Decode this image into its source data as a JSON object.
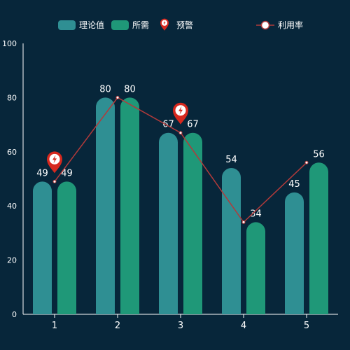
{
  "chart_data": {
    "type": "bar",
    "categories": [
      "1",
      "2",
      "3",
      "4",
      "5"
    ],
    "ylim": [
      0,
      100
    ],
    "yticks": [
      0,
      20,
      40,
      60,
      80,
      100
    ],
    "series": [
      {
        "name": "理论值",
        "kind": "bar",
        "values": [
          49,
          80,
          67,
          54,
          45
        ],
        "color": "#2f8f93"
      },
      {
        "name": "所需",
        "kind": "bar",
        "values": [
          49,
          80,
          67,
          34,
          56
        ],
        "color": "#1f9878"
      },
      {
        "name": "利用率",
        "kind": "line",
        "values": [
          49,
          80,
          67,
          34,
          56
        ],
        "color": "#b23a3a"
      }
    ],
    "warning": {
      "name": "预警",
      "categories": [
        "1",
        "3"
      ],
      "color": "#d6281e",
      "icon": "lightning-pin-icon"
    },
    "grid": false,
    "legend_position": "top"
  },
  "colors": {
    "background": "#07263a",
    "axis": "#ffffff",
    "text": "#ffffff"
  }
}
